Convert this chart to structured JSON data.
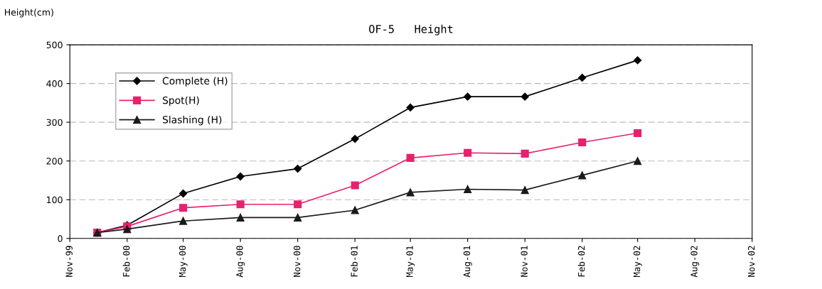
{
  "chart_data": {
    "type": "line",
    "title": "OF-5   Height",
    "ylabel": "Height(cm)",
    "x": [
      "1999-12-15",
      "2000-02-01",
      "2000-05-01",
      "2000-08-01",
      "2000-11-01",
      "2001-02-01",
      "2001-05-01",
      "2001-08-01",
      "2001-11-01",
      "2002-02-01",
      "2002-05-01"
    ],
    "series": [
      {
        "name": "Complete (H)",
        "color": "#000000",
        "marker": "diamond",
        "values": [
          15,
          34,
          116,
          160,
          180,
          257,
          338,
          366,
          366,
          415,
          460
        ]
      },
      {
        "name": "Spot(H)",
        "color": "#e8206e",
        "marker": "square",
        "values": [
          15,
          31,
          79,
          88,
          88,
          137,
          208,
          221,
          219,
          248,
          272
        ]
      },
      {
        "name": "Slashing (H)",
        "color": "#1a1a1a",
        "marker": "triangle",
        "values": [
          15,
          24,
          45,
          54,
          54,
          73,
          119,
          127,
          125,
          163,
          200
        ]
      }
    ],
    "xlim": [
      "1999-11-01",
      "2002-11-01"
    ],
    "xticks": [
      {
        "value": "1999-11-01",
        "label": "Nov-99"
      },
      {
        "value": "2000-02-01",
        "label": "Feb-00"
      },
      {
        "value": "2000-05-01",
        "label": "May-00"
      },
      {
        "value": "2000-08-01",
        "label": "Aug-00"
      },
      {
        "value": "2000-11-01",
        "label": "Nov-00"
      },
      {
        "value": "2001-02-01",
        "label": "Feb-01"
      },
      {
        "value": "2001-05-01",
        "label": "May-01"
      },
      {
        "value": "2001-08-01",
        "label": "Aug-01"
      },
      {
        "value": "2001-11-01",
        "label": "Nov-01"
      },
      {
        "value": "2002-02-01",
        "label": "Feb-02"
      },
      {
        "value": "2002-05-01",
        "label": "May-02"
      },
      {
        "value": "2002-08-01",
        "label": "Aug-02"
      },
      {
        "value": "2002-11-01",
        "label": "Nov-02"
      }
    ],
    "ylim": [
      0,
      500
    ],
    "yticks": [
      0,
      100,
      200,
      300,
      400,
      500
    ],
    "grid": "y",
    "legend": "top left",
    "line_style": "solid"
  }
}
